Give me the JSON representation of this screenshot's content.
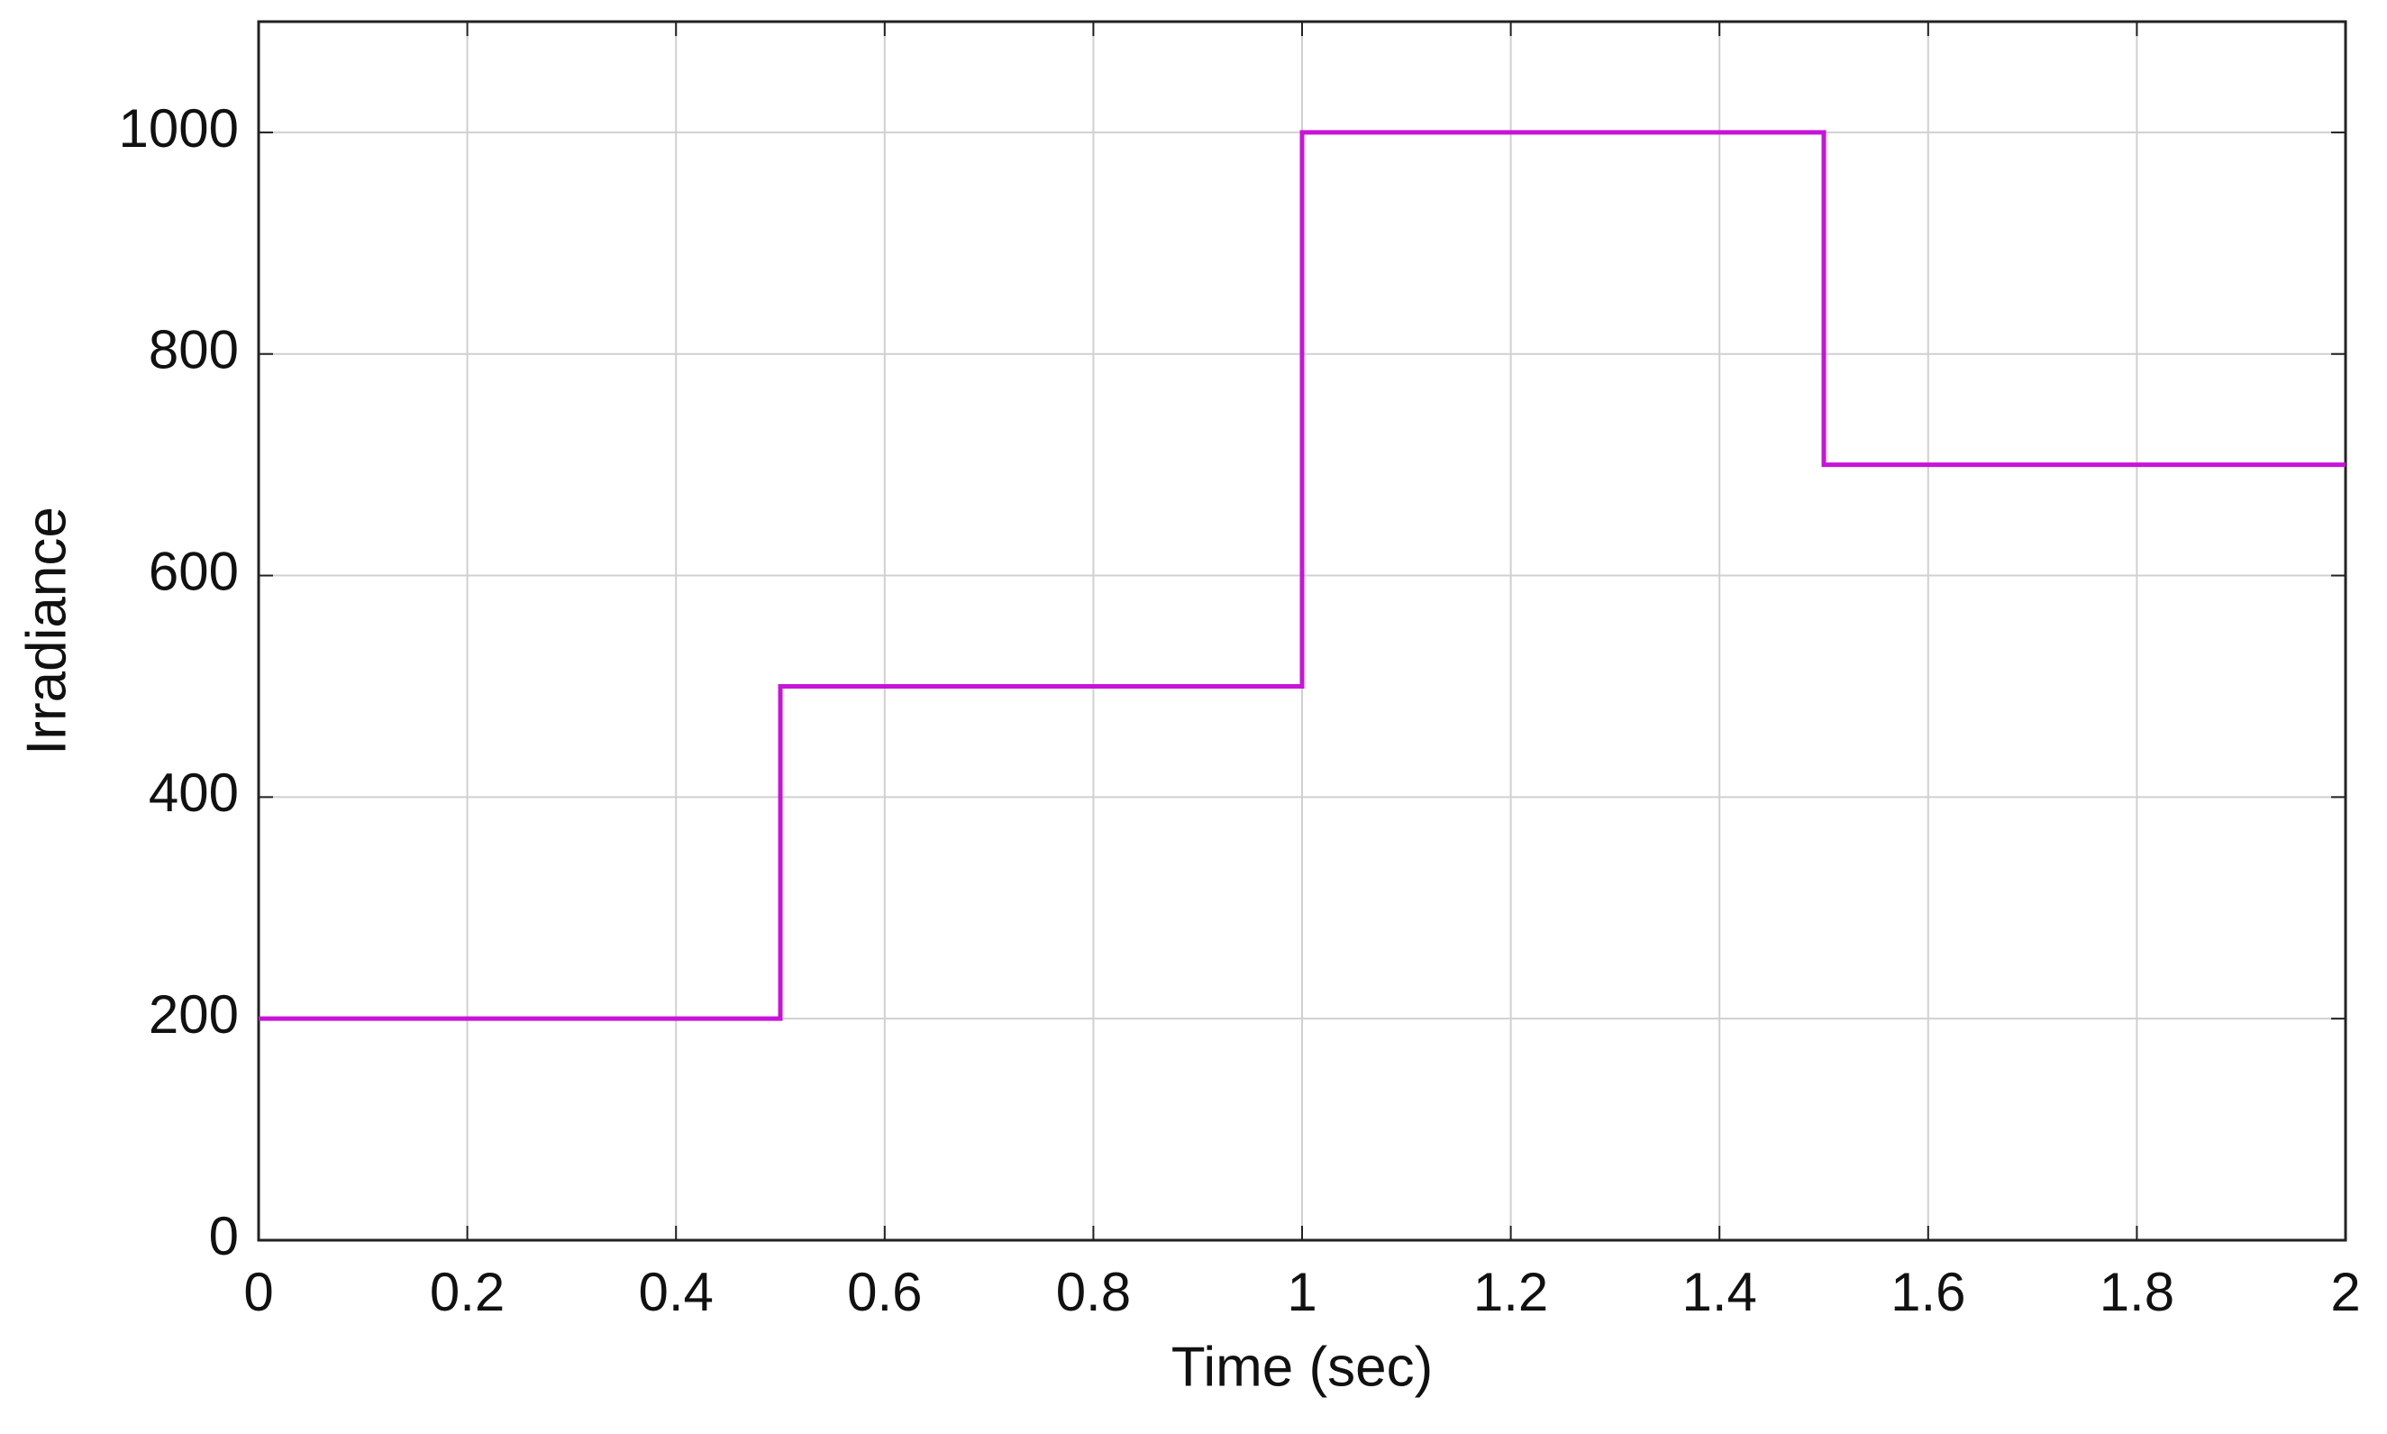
{
  "chart_data": {
    "type": "line",
    "x_label": "Time (sec)",
    "y_label": "Irradiance",
    "x": [
      0,
      0.5,
      0.5,
      1,
      1,
      1.5,
      1.5,
      2
    ],
    "series": [
      {
        "name": "Irradiance",
        "color": "#c814d8",
        "values": [
          200,
          200,
          500,
          500,
          1000,
          1000,
          700,
          700
        ]
      }
    ],
    "xlim": [
      0,
      2
    ],
    "xticks": [
      0,
      0.2,
      0.4,
      0.6,
      0.8,
      1,
      1.2,
      1.4,
      1.6,
      1.8,
      2
    ],
    "ylim": [
      0,
      1100
    ],
    "yticks": [
      0,
      200,
      400,
      600,
      800,
      1000
    ],
    "grid": true
  }
}
